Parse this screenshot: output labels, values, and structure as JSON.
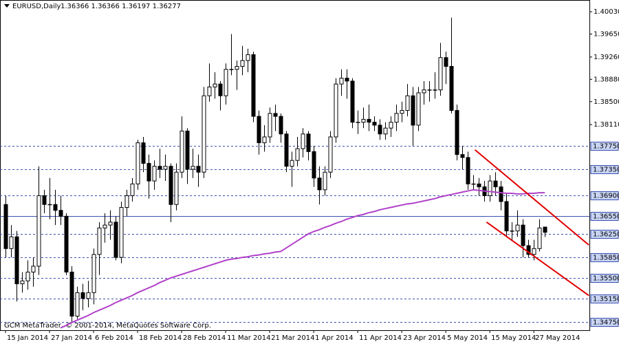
{
  "chart_data": {
    "type": "candlestick",
    "title": "EURUSD,Daily",
    "ohlc_text": "1.36366 1.36366 1.36197 1.36277",
    "copyright": "GCM MetaTrader, © 2001-2014, MetaQuotes Software Corp.",
    "xlim": [
      -1,
      106.1
    ],
    "ylim": [
      1.3461,
      1.4023
    ],
    "xticks": [
      {
        "value": 0,
        "label": "15 Jan 2014"
      },
      {
        "value": 8,
        "label": "27 Jan 2014"
      },
      {
        "value": 16,
        "label": "6 Feb 2014"
      },
      {
        "value": 24,
        "label": "18 Feb 2014"
      },
      {
        "value": 32,
        "label": "28 Feb 2014"
      },
      {
        "value": 40,
        "label": "11 Mar 2014"
      },
      {
        "value": 48,
        "label": "21 Mar 2014"
      },
      {
        "value": 56,
        "label": "1 Apr 2014"
      },
      {
        "value": 64,
        "label": "11 Apr 2014"
      },
      {
        "value": 72,
        "label": "23 Apr 2014"
      },
      {
        "value": 80,
        "label": "5 May 2014"
      },
      {
        "value": 88,
        "label": "15 May 2014"
      },
      {
        "value": 96,
        "label": "27 May 2014"
      }
    ],
    "yticks": [
      {
        "value": 1.4003,
        "label": "1.40030"
      },
      {
        "value": 1.3965,
        "label": "1.39650"
      },
      {
        "value": 1.3926,
        "label": "1.39260"
      },
      {
        "value": 1.3888,
        "label": "1.38880"
      },
      {
        "value": 1.385,
        "label": "1.38500"
      },
      {
        "value": 1.3811,
        "label": "1.38110"
      }
    ],
    "hlines": [
      {
        "value": 1.3775,
        "label": "1.37750",
        "style": "dashed"
      },
      {
        "value": 1.3735,
        "label": "1.37350",
        "style": "dashed"
      },
      {
        "value": 1.369,
        "label": "1.36900",
        "style": "dashed"
      },
      {
        "value": 1.3655,
        "label": "1.36550",
        "style": "solid"
      },
      {
        "value": 1.3625,
        "label": "1.36250",
        "style": "dashed"
      },
      {
        "value": 1.3585,
        "label": "1.35850",
        "style": "dashed"
      },
      {
        "value": 1.355,
        "label": "1.35500",
        "style": "dashed"
      },
      {
        "value": 1.3515,
        "label": "1.35150",
        "style": "dashed"
      },
      {
        "value": 1.3475,
        "label": "1.34750",
        "style": "dashed"
      }
    ],
    "hline_color": "#3a4fb0",
    "up_color": "#ffffff",
    "down_color": "#000000",
    "candles": [
      [
        1.3675,
        1.369,
        1.3585,
        1.36
      ],
      [
        1.36,
        1.364,
        1.3585,
        1.362
      ],
      [
        1.362,
        1.363,
        1.351,
        1.354
      ],
      [
        1.354,
        1.356,
        1.3525,
        1.3545
      ],
      [
        1.3545,
        1.358,
        1.353,
        1.356
      ],
      [
        1.356,
        1.3585,
        1.3535,
        1.357
      ],
      [
        1.357,
        1.374,
        1.3555,
        1.369
      ],
      [
        1.369,
        1.37,
        1.366,
        1.3675
      ],
      [
        1.3675,
        1.372,
        1.365,
        1.3675
      ],
      [
        1.3675,
        1.37,
        1.364,
        1.3665
      ],
      [
        1.3665,
        1.369,
        1.364,
        1.3655
      ],
      [
        1.3655,
        1.366,
        1.3555,
        1.356
      ],
      [
        1.356,
        1.357,
        1.3475,
        1.3485
      ],
      [
        1.3485,
        1.3535,
        1.348,
        1.3525
      ],
      [
        1.3525,
        1.354,
        1.3495,
        1.3515
      ],
      [
        1.3515,
        1.3545,
        1.35,
        1.3525
      ],
      [
        1.3525,
        1.36,
        1.3505,
        1.359
      ],
      [
        1.359,
        1.3645,
        1.3555,
        1.3635
      ],
      [
        1.3635,
        1.366,
        1.361,
        1.364
      ],
      [
        1.364,
        1.3665,
        1.3615,
        1.3645
      ],
      [
        1.3645,
        1.3655,
        1.358,
        1.3585
      ],
      [
        1.3585,
        1.368,
        1.3575,
        1.367
      ],
      [
        1.367,
        1.37,
        1.3655,
        1.369
      ],
      [
        1.369,
        1.372,
        1.368,
        1.371
      ],
      [
        1.371,
        1.3785,
        1.37,
        1.378
      ],
      [
        1.378,
        1.379,
        1.373,
        1.3745
      ],
      [
        1.3745,
        1.376,
        1.3685,
        1.3715
      ],
      [
        1.3715,
        1.375,
        1.37,
        1.374
      ],
      [
        1.374,
        1.377,
        1.372,
        1.3735
      ],
      [
        1.3735,
        1.376,
        1.3715,
        1.374
      ],
      [
        1.374,
        1.3745,
        1.3645,
        1.3675
      ],
      [
        1.3675,
        1.3745,
        1.3665,
        1.373
      ],
      [
        1.373,
        1.3825,
        1.372,
        1.38
      ],
      [
        1.38,
        1.3805,
        1.371,
        1.3735
      ],
      [
        1.3735,
        1.377,
        1.372,
        1.374
      ],
      [
        1.374,
        1.376,
        1.3705,
        1.373
      ],
      [
        1.373,
        1.3875,
        1.372,
        1.386
      ],
      [
        1.386,
        1.3915,
        1.385,
        1.3875
      ],
      [
        1.3875,
        1.39,
        1.3855,
        1.388
      ],
      [
        1.388,
        1.3885,
        1.3835,
        1.386
      ],
      [
        1.386,
        1.3915,
        1.3845,
        1.3905
      ],
      [
        1.3905,
        1.3965,
        1.3895,
        1.3905
      ],
      [
        1.3905,
        1.392,
        1.387,
        1.391
      ],
      [
        1.391,
        1.3945,
        1.3895,
        1.392
      ],
      [
        1.392,
        1.394,
        1.39,
        1.393
      ],
      [
        1.393,
        1.3935,
        1.3815,
        1.3825
      ],
      [
        1.3825,
        1.3835,
        1.376,
        1.378
      ],
      [
        1.378,
        1.381,
        1.3765,
        1.379
      ],
      [
        1.379,
        1.384,
        1.378,
        1.383
      ],
      [
        1.383,
        1.3845,
        1.38,
        1.3825
      ],
      [
        1.3825,
        1.383,
        1.378,
        1.3795
      ],
      [
        1.3795,
        1.38,
        1.373,
        1.374
      ],
      [
        1.374,
        1.3765,
        1.3705,
        1.375
      ],
      [
        1.375,
        1.379,
        1.374,
        1.377
      ],
      [
        1.377,
        1.3805,
        1.3755,
        1.3795
      ],
      [
        1.3795,
        1.38,
        1.375,
        1.3765
      ],
      [
        1.3765,
        1.3775,
        1.3705,
        1.372
      ],
      [
        1.372,
        1.374,
        1.3675,
        1.37
      ],
      [
        1.37,
        1.374,
        1.369,
        1.373
      ],
      [
        1.373,
        1.38,
        1.372,
        1.379
      ],
      [
        1.379,
        1.389,
        1.378,
        1.388
      ],
      [
        1.388,
        1.3905,
        1.386,
        1.389
      ],
      [
        1.389,
        1.3905,
        1.3855,
        1.3885
      ],
      [
        1.3885,
        1.389,
        1.3805,
        1.3815
      ],
      [
        1.3815,
        1.3835,
        1.3795,
        1.3815
      ],
      [
        1.3815,
        1.384,
        1.3805,
        1.382
      ],
      [
        1.382,
        1.3845,
        1.38,
        1.3815
      ],
      [
        1.3815,
        1.3825,
        1.38,
        1.381
      ],
      [
        1.381,
        1.382,
        1.3785,
        1.3795
      ],
      [
        1.3795,
        1.3815,
        1.3785,
        1.3805
      ],
      [
        1.3805,
        1.3825,
        1.379,
        1.3815
      ],
      [
        1.3815,
        1.3845,
        1.38,
        1.383
      ],
      [
        1.383,
        1.385,
        1.3815,
        1.3835
      ],
      [
        1.3835,
        1.388,
        1.3825,
        1.386
      ],
      [
        1.386,
        1.3875,
        1.3775,
        1.381
      ],
      [
        1.381,
        1.3875,
        1.38,
        1.3865
      ],
      [
        1.3865,
        1.3885,
        1.3845,
        1.387
      ],
      [
        1.387,
        1.3885,
        1.385,
        1.387
      ],
      [
        1.387,
        1.39,
        1.3855,
        1.387
      ],
      [
        1.387,
        1.395,
        1.386,
        1.3925
      ],
      [
        1.3925,
        1.3935,
        1.388,
        1.391
      ],
      [
        1.391,
        1.3993,
        1.383,
        1.3835
      ],
      [
        1.3835,
        1.3845,
        1.375,
        1.376
      ],
      [
        1.376,
        1.3775,
        1.3735,
        1.3755
      ],
      [
        1.3755,
        1.3765,
        1.37,
        1.371
      ],
      [
        1.371,
        1.3725,
        1.37,
        1.371
      ],
      [
        1.371,
        1.372,
        1.369,
        1.3705
      ],
      [
        1.3705,
        1.3715,
        1.368,
        1.369
      ],
      [
        1.369,
        1.3725,
        1.368,
        1.3715
      ],
      [
        1.3715,
        1.373,
        1.369,
        1.3705
      ],
      [
        1.3705,
        1.3715,
        1.3665,
        1.368
      ],
      [
        1.368,
        1.3695,
        1.362,
        1.363
      ],
      [
        1.363,
        1.3645,
        1.3615,
        1.363
      ],
      [
        1.363,
        1.3665,
        1.362,
        1.364
      ],
      [
        1.364,
        1.365,
        1.3585,
        1.3605
      ],
      [
        1.3605,
        1.3615,
        1.3585,
        1.359
      ],
      [
        1.359,
        1.3615,
        1.358,
        1.36
      ],
      [
        1.36,
        1.365,
        1.3595,
        1.3635
      ],
      [
        1.36366,
        1.36366,
        1.36197,
        1.36277
      ]
    ],
    "ma": {
      "color": "#b040c8",
      "values": [
        null,
        null,
        null,
        null,
        null,
        null,
        null,
        null,
        null,
        null,
        1.3465,
        1.3469,
        1.3474,
        1.3478,
        1.3482,
        1.3486,
        1.3491,
        1.3495,
        1.3499,
        1.3503,
        1.3508,
        1.3512,
        1.3516,
        1.352,
        1.3525,
        1.3529,
        1.3533,
        1.3537,
        1.3542,
        1.3546,
        1.355,
        1.3553,
        1.3556,
        1.3559,
        1.3562,
        1.3565,
        1.3568,
        1.3571,
        1.3574,
        1.3577,
        1.358,
        1.3582,
        1.3583,
        1.3585,
        1.3586,
        1.3588,
        1.3589,
        1.3591,
        1.3592,
        1.3594,
        1.3595,
        1.3601,
        1.3607,
        1.3613,
        1.3619,
        1.3625,
        1.3629,
        1.3632,
        1.3636,
        1.3639,
        1.3643,
        1.3646,
        1.365,
        1.3653,
        1.3656,
        1.3658,
        1.3661,
        1.3663,
        1.3666,
        1.3668,
        1.367,
        1.3672,
        1.3674,
        1.3676,
        1.3677,
        1.3679,
        1.3681,
        1.3683,
        1.3685,
        1.3688,
        1.369,
        1.3692,
        1.3694,
        1.3696,
        1.3698,
        1.37,
        1.3699,
        1.3698,
        1.3697,
        1.3696,
        1.3695,
        1.3694,
        1.3694,
        1.3693,
        1.3693,
        1.3694,
        1.3694,
        1.3695,
        1.3695
      ]
    },
    "trendlines": {
      "color": "#e00000",
      "lines": [
        {
          "x": [
            85.3,
            106
          ],
          "y": [
            1.3768,
            1.3606
          ]
        },
        {
          "x": [
            87.4,
            106
          ],
          "y": [
            1.3645,
            1.352
          ]
        }
      ]
    }
  }
}
